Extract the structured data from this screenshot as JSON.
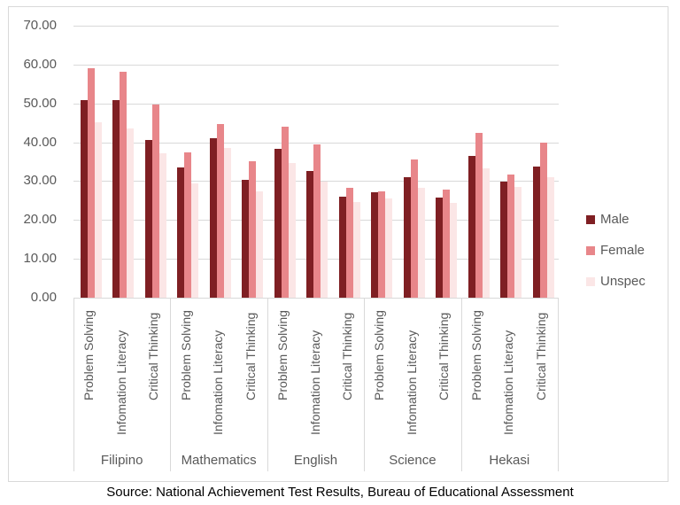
{
  "chart_data": {
    "type": "bar",
    "title": "",
    "xlabel": "",
    "ylabel": "",
    "ylim": [
      0,
      70
    ],
    "yticks": [
      "0.00",
      "10.00",
      "20.00",
      "30.00",
      "40.00",
      "50.00",
      "60.00",
      "70.00"
    ],
    "grid": true,
    "legend_position": "right",
    "groups": [
      "Filipino",
      "Mathematics",
      "English",
      "Science",
      "Hekasi"
    ],
    "subcategories": [
      "Problem Solving",
      "Infomation Literacy",
      "Critical Thinking"
    ],
    "categories": [
      "Filipino - Problem Solving",
      "Filipino - Infomation Literacy",
      "Filipino - Critical Thinking",
      "Mathematics - Problem Solving",
      "Mathematics - Infomation Literacy",
      "Mathematics - Critical Thinking",
      "English - Problem Solving",
      "English - Infomation Literacy",
      "English - Critical Thinking",
      "Science - Problem Solving",
      "Science - Infomation Literacy",
      "Science - Critical Thinking",
      "Hekasi - Problem Solving",
      "Hekasi - Infomation Literacy",
      "Hekasi - Critical Thinking"
    ],
    "series": [
      {
        "name": "Male",
        "color": "#7f1f23",
        "values": [
          50.8,
          50.8,
          40.6,
          33.5,
          41.1,
          30.4,
          38.4,
          32.7,
          26.1,
          27.2,
          31.1,
          25.8,
          36.5,
          29.9,
          33.8
        ]
      },
      {
        "name": "Female",
        "color": "#e8868a",
        "values": [
          59.1,
          58.2,
          49.7,
          37.5,
          44.7,
          35.2,
          44.1,
          39.5,
          28.3,
          27.4,
          35.6,
          27.9,
          42.4,
          31.8,
          39.8
        ]
      },
      {
        "name": "Unspec",
        "color": "#fbe6e6",
        "values": [
          45.2,
          43.6,
          37.2,
          29.5,
          38.6,
          27.4,
          34.7,
          29.9,
          24.6,
          25.6,
          28.3,
          24.3,
          33.4,
          28.6,
          31.0
        ]
      }
    ]
  },
  "legend": {
    "items": [
      {
        "label": "Male",
        "color": "#7f1f23"
      },
      {
        "label": "Female",
        "color": "#e8868a"
      },
      {
        "label": "Unspec",
        "color": "#fbe6e6"
      }
    ]
  },
  "source": "Source: National Achievement Test Results, Bureau of Educational Assessment"
}
